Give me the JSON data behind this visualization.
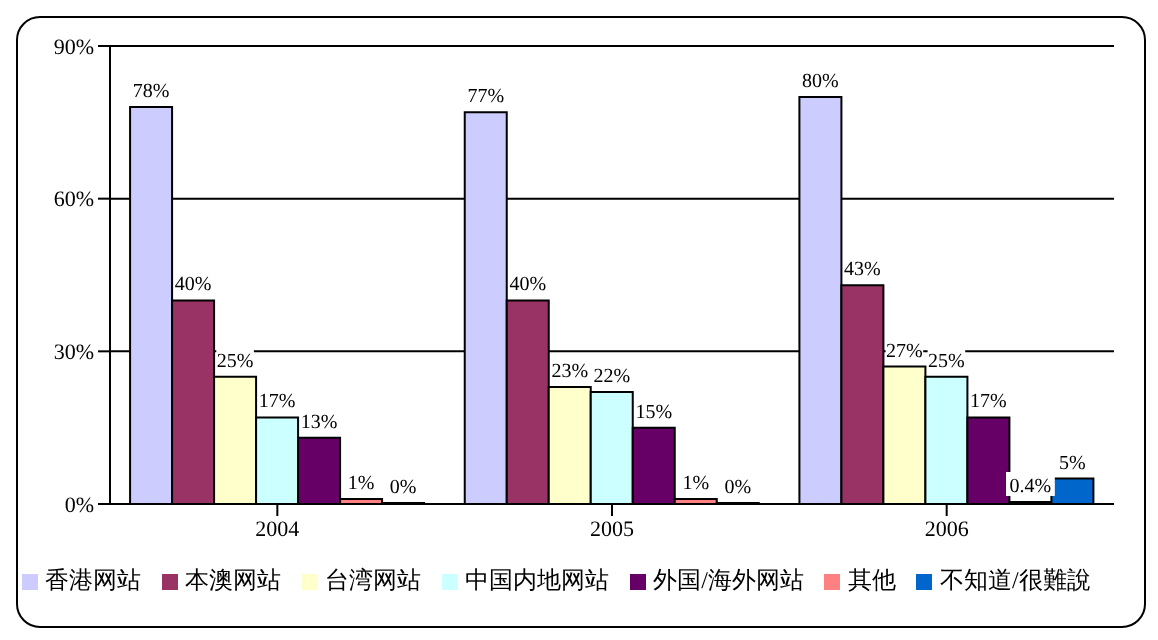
{
  "chart_data": {
    "type": "bar",
    "categories": [
      "2004",
      "2005",
      "2006"
    ],
    "series": [
      {
        "name": "香港网站",
        "color": "#ccccff",
        "values": [
          78,
          77,
          80
        ],
        "value_labels": [
          "78%",
          "77%",
          "80%"
        ]
      },
      {
        "name": "本澳网站",
        "color": "#993366",
        "values": [
          40,
          40,
          43
        ],
        "value_labels": [
          "40%",
          "40%",
          "43%"
        ]
      },
      {
        "name": "台湾网站",
        "color": "#ffffcc",
        "values": [
          25,
          23,
          27
        ],
        "value_labels": [
          "25%",
          "23%",
          "27%"
        ]
      },
      {
        "name": "中国内地网站",
        "color": "#ccffff",
        "values": [
          17,
          22,
          25
        ],
        "value_labels": [
          "17%",
          "22%",
          "25%"
        ]
      },
      {
        "name": "外国/海外网站",
        "color": "#660066",
        "values": [
          13,
          15,
          17
        ],
        "value_labels": [
          "13%",
          "15%",
          "17%"
        ]
      },
      {
        "name": "其他",
        "color": "#ff8080",
        "values": [
          1,
          1,
          0.4
        ],
        "value_labels": [
          "1%",
          "1%",
          "0.4%"
        ]
      },
      {
        "name": "不知道/很難說",
        "color": "#0066cc",
        "values": [
          0,
          0,
          5
        ],
        "value_labels": [
          "0%",
          "0%",
          "5%"
        ]
      }
    ],
    "ylim": [
      0,
      90
    ],
    "yticks": [
      {
        "value": 0,
        "label": "0%"
      },
      {
        "value": 30,
        "label": "30%"
      },
      {
        "value": 60,
        "label": "60%"
      },
      {
        "value": 90,
        "label": "90%"
      }
    ],
    "grid": "y",
    "legend": "bottom"
  }
}
